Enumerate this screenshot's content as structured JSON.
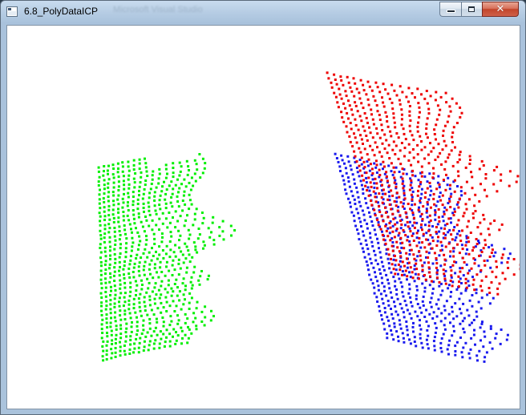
{
  "window": {
    "title": "6.8_PolyDataICP",
    "background_title_text": "Microsoft Visual Studio"
  },
  "controls": {
    "minimize_icon": "minimize-icon",
    "maximize_icon": "maximize-icon",
    "close_icon": "close-icon",
    "close_glyph": "✕"
  },
  "viewport": {
    "background_color": "#ffffff",
    "clouds": [
      {
        "id": "source",
        "color": "#00ee00"
      },
      {
        "id": "target",
        "color": "#ee0000"
      },
      {
        "id": "aligned",
        "color": "#1a1aee"
      }
    ]
  }
}
